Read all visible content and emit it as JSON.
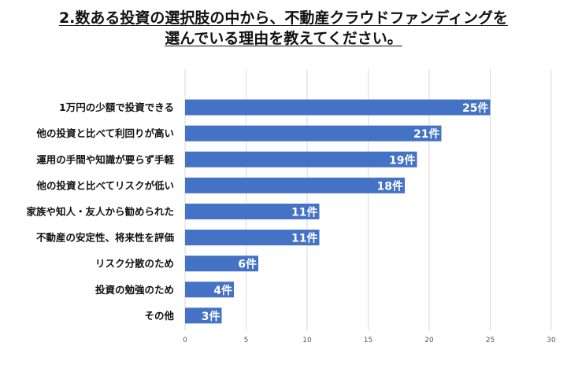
{
  "chart_data": {
    "type": "bar",
    "orientation": "horizontal",
    "title_line1": "2.数ある投資の選択肢の中から、不動産クラウドファンディングを",
    "title_line2": "選んでいる理由を教えてください。",
    "categories": [
      "1万円の少額で投資できる",
      "他の投資と比べて利回りが高い",
      "運用の手間や知識が要らず手軽",
      "他の投資と比べてリスクが低い",
      "家族や知人・友人から勧められた",
      "不動産の安定性、将来性を評価",
      "リスク分散のため",
      "投資の勉強のため",
      "その他"
    ],
    "values": [
      25,
      21,
      19,
      18,
      11,
      11,
      6,
      4,
      3
    ],
    "data_labels": [
      "25件",
      "21件",
      "19件",
      "18件",
      "11件",
      "11件",
      "6件",
      "4件",
      "3件"
    ],
    "xlim": [
      0,
      30
    ],
    "xticks": [
      "0",
      "5",
      "10",
      "15",
      "20",
      "25",
      "30"
    ],
    "grid": true,
    "bar_color": "#4472C4"
  }
}
